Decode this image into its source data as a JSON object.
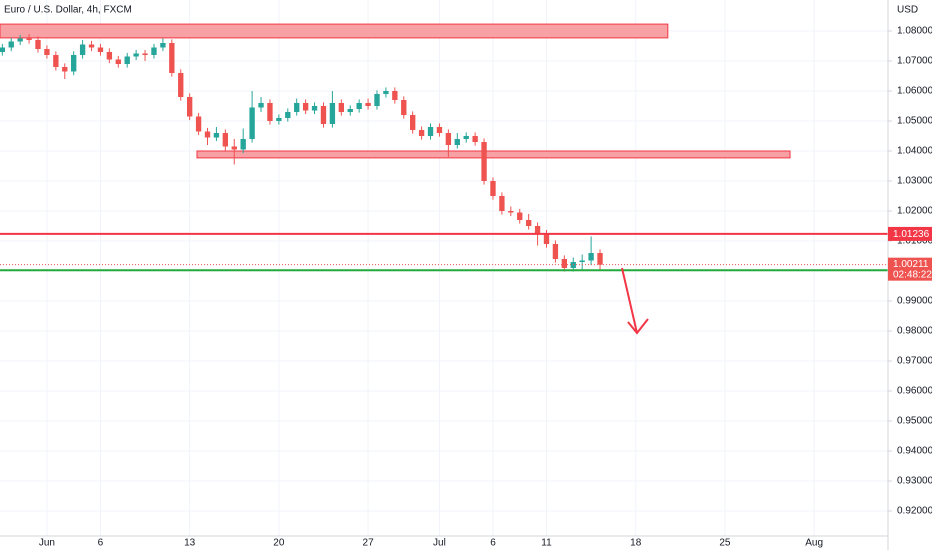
{
  "chart_data": {
    "type": "candlestick",
    "title": "Euro / U.S. Dollar, 4h, FXCM",
    "currency": "USD",
    "x": [
      -2.5,
      -2,
      -1.5,
      -1,
      -0.5,
      0,
      0.5,
      1,
      1.5,
      2,
      2.5,
      3,
      3.5,
      4,
      4.5,
      5,
      5.5,
      6,
      6.5,
      7,
      7.5,
      8,
      8.5,
      9,
      9.5,
      10,
      10.5,
      11,
      11.5,
      12,
      12.5,
      13,
      13.5,
      14,
      14.5,
      15,
      15.5,
      16,
      16.5,
      17,
      17.5,
      18,
      18.5,
      19,
      19.5,
      20,
      20.5,
      21,
      21.5,
      22,
      22.5,
      23,
      23.5,
      24,
      24.5,
      25,
      25.5,
      26,
      26.5,
      27,
      27.5,
      28,
      28.5,
      29,
      29.5,
      30,
      30.5,
      31
    ],
    "open": [
      1.073,
      1.0745,
      1.0765,
      1.0775,
      1.077,
      1.074,
      1.072,
      1.068,
      1.0665,
      1.072,
      1.0755,
      1.0745,
      1.073,
      1.0705,
      1.069,
      1.0715,
      1.0725,
      1.072,
      1.0745,
      1.076,
      1.066,
      1.058,
      1.0515,
      1.0465,
      1.0445,
      1.046,
      1.0415,
      1.0405,
      1.044,
      1.0545,
      1.056,
      1.05,
      1.051,
      1.053,
      1.056,
      1.0535,
      1.055,
      1.049,
      1.056,
      1.053,
      1.054,
      1.056,
      1.055,
      1.059,
      1.06,
      1.057,
      1.052,
      1.047,
      1.045,
      1.048,
      1.046,
      1.042,
      1.044,
      1.045,
      1.043,
      1.03,
      1.025,
      1.02,
      1.0195,
      1.017,
      1.015,
      1.0125,
      1.009,
      1.004,
      1.001,
      1.003,
      1.0035,
      1.006
    ],
    "high": [
      1.0757,
      1.0777,
      1.0787,
      1.079,
      1.0782,
      1.0752,
      1.0732,
      1.0692,
      1.0732,
      1.077,
      1.0767,
      1.0757,
      1.0742,
      1.0717,
      1.0727,
      1.0737,
      1.0737,
      1.0757,
      1.0775,
      1.0772,
      1.0672,
      1.0592,
      1.0527,
      1.0477,
      1.048,
      1.0472,
      1.044,
      1.0475,
      1.06,
      1.058,
      1.0572,
      1.0522,
      1.0542,
      1.0575,
      1.0572,
      1.0562,
      1.0562,
      1.06,
      1.0572,
      1.0552,
      1.0572,
      1.0575,
      1.0602,
      1.0612,
      1.0612,
      1.0582,
      1.0532,
      1.0482,
      1.0492,
      1.0492,
      1.0472,
      1.046,
      1.0462,
      1.0462,
      1.0442,
      1.0312,
      1.0262,
      1.0215,
      1.0207,
      1.019,
      1.0162,
      1.0137,
      1.0102,
      1.0052,
      1.0045,
      1.0055,
      1.0115,
      1.0072
    ],
    "low": [
      1.0718,
      1.0733,
      1.0753,
      1.0758,
      1.0728,
      1.0708,
      1.0668,
      1.064,
      1.0653,
      1.0708,
      1.0733,
      1.0718,
      1.0693,
      1.0678,
      1.0678,
      1.0703,
      1.07,
      1.0708,
      1.0733,
      1.0648,
      1.0568,
      1.0503,
      1.0453,
      1.042,
      1.0433,
      1.04,
      1.0355,
      1.0393,
      1.0428,
      1.053,
      1.0488,
      1.0488,
      1.0498,
      1.0518,
      1.0523,
      1.0523,
      1.0478,
      1.0478,
      1.0518,
      1.0518,
      1.0528,
      1.0538,
      1.0538,
      1.0578,
      1.0558,
      1.0508,
      1.0458,
      1.0438,
      1.0438,
      1.0448,
      1.038,
      1.0408,
      1.0428,
      1.0418,
      1.0288,
      1.0238,
      1.0188,
      1.0183,
      1.0158,
      1.0138,
      1.0085,
      1.0078,
      1.0028,
      0.9998,
      0.9998,
      1.0003,
      1.002,
      1.0005
    ],
    "close": [
      1.0745,
      1.0765,
      1.0775,
      1.077,
      1.074,
      1.072,
      1.068,
      1.0665,
      1.072,
      1.0755,
      1.0745,
      1.073,
      1.0705,
      1.069,
      1.0715,
      1.0725,
      1.072,
      1.0745,
      1.076,
      1.066,
      1.058,
      1.0515,
      1.0465,
      1.0445,
      1.046,
      1.0415,
      1.0405,
      1.044,
      1.0545,
      1.056,
      1.05,
      1.051,
      1.053,
      1.056,
      1.0535,
      1.055,
      1.049,
      1.056,
      1.053,
      1.054,
      1.056,
      1.055,
      1.059,
      1.06,
      1.057,
      1.052,
      1.047,
      1.045,
      1.048,
      1.046,
      1.042,
      1.044,
      1.045,
      1.043,
      1.03,
      1.025,
      1.02,
      1.0195,
      1.017,
      1.015,
      1.0125,
      1.009,
      1.004,
      1.001,
      1.003,
      1.0035,
      1.006,
      1.0021
    ],
    "up_color": "#26a69a",
    "down_color": "#ef5350",
    "xlim": [
      -2.63,
      47.14
    ],
    "ylim": [
      0.91167,
      1.09033
    ],
    "xticks": [
      {
        "value": 0,
        "label": "Jun"
      },
      {
        "value": 3,
        "label": "6"
      },
      {
        "value": 8,
        "label": "13"
      },
      {
        "value": 13,
        "label": "20"
      },
      {
        "value": 18,
        "label": "27"
      },
      {
        "value": 22,
        "label": "Jul"
      },
      {
        "value": 25,
        "label": "6"
      },
      {
        "value": 28,
        "label": "11"
      },
      {
        "value": 33,
        "label": "18"
      },
      {
        "value": 38,
        "label": "25"
      },
      {
        "value": 43,
        "label": "Aug"
      }
    ],
    "yticks": [
      {
        "value": 1.08,
        "label": "1.08000"
      },
      {
        "value": 1.07,
        "label": "1.07000"
      },
      {
        "value": 1.06,
        "label": "1.06000"
      },
      {
        "value": 1.05,
        "label": "1.05000"
      },
      {
        "value": 1.04,
        "label": "1.04000"
      },
      {
        "value": 1.03,
        "label": "1.03000"
      },
      {
        "value": 1.02,
        "label": "1.02000"
      },
      {
        "value": 1.01,
        "label": "1.01000"
      },
      {
        "value": 1.0,
        "label": "1.00000"
      },
      {
        "value": 0.99,
        "label": "0.99000"
      },
      {
        "value": 0.98,
        "label": "0.98000"
      },
      {
        "value": 0.97,
        "label": "0.97000"
      },
      {
        "value": 0.96,
        "label": "0.96000"
      },
      {
        "value": 0.95,
        "label": "0.95000"
      },
      {
        "value": 0.94,
        "label": "0.94000"
      },
      {
        "value": 0.93,
        "label": "0.93000"
      },
      {
        "value": 0.92,
        "label": "0.92000"
      }
    ],
    "grid": true,
    "zones": [
      {
        "x": [
          -2.63,
          34.8
        ],
        "y": [
          1.0777,
          1.0823
        ],
        "color": "#f7a1a4"
      },
      {
        "x": [
          8.41,
          41.65
        ],
        "y": [
          1.0377,
          1.04
        ],
        "color": "#f7a1a4"
      }
    ],
    "levels": [
      {
        "value": 1.01236,
        "color": "#f23645"
      },
      {
        "value": 1.00023,
        "color": "#22ab3a"
      }
    ],
    "last": {
      "value": 1.00211,
      "countdown": "02:48:22",
      "color": "#ef5350"
    }
  }
}
